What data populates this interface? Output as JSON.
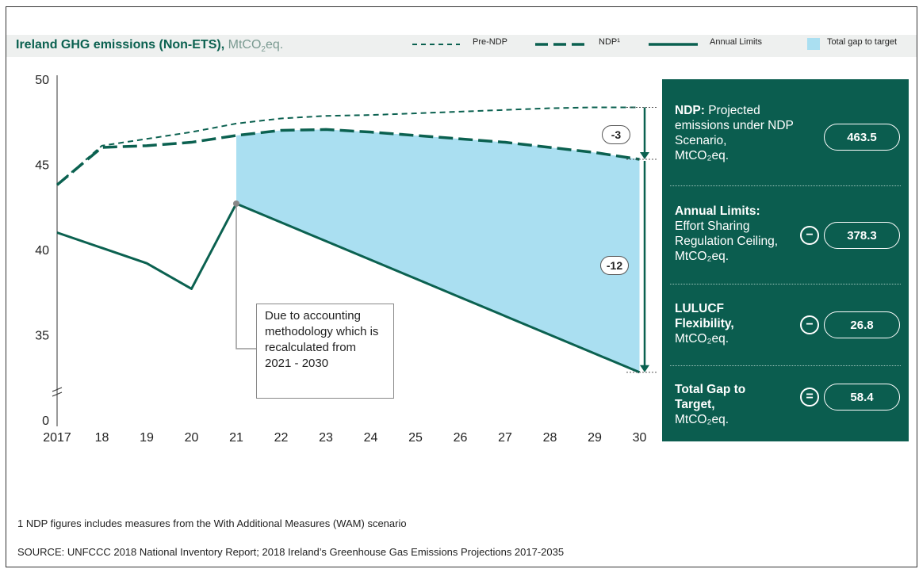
{
  "title": {
    "main": "Ireland GHG emissions (Non-ETS),",
    "unit_prefix": "MtCO",
    "unit_sub": "2",
    "unit_suffix": "eq."
  },
  "legend": [
    {
      "label": "Pre-NDP",
      "style": "short-dash"
    },
    {
      "label": "NDP¹",
      "style": "long-dash"
    },
    {
      "label": "Annual Limits",
      "style": "solid"
    },
    {
      "label": "Total gap to target",
      "style": "swatch"
    }
  ],
  "colors": {
    "line": "#0b6150",
    "gap_fill": "#aadff1",
    "panel": "#0b5d4f",
    "band": "#eef0ef"
  },
  "chart_data": {
    "type": "line",
    "x": [
      "2017",
      "18",
      "19",
      "20",
      "21",
      "22",
      "23",
      "24",
      "25",
      "26",
      "27",
      "28",
      "29",
      "30"
    ],
    "y_ticks": [
      "0",
      "35",
      "40",
      "45",
      "50"
    ],
    "y_axis_break": true,
    "ylim": [
      32.5,
      50
    ],
    "series": [
      {
        "name": "Pre-NDP",
        "style": "short-dash",
        "values": [
          43.8,
          46.1,
          46.5,
          46.9,
          47.4,
          47.7,
          47.85,
          47.9,
          48.0,
          48.1,
          48.2,
          48.3,
          48.35,
          48.35
        ]
      },
      {
        "name": "NDP¹",
        "style": "long-dash",
        "values": [
          43.8,
          46.0,
          46.1,
          46.3,
          46.7,
          47.0,
          47.05,
          46.9,
          46.7,
          46.5,
          46.3,
          46.0,
          45.7,
          45.3
        ]
      },
      {
        "name": "Annual Limits",
        "style": "solid",
        "values": [
          41.0,
          40.1,
          39.2,
          37.7,
          42.7,
          41.6,
          40.5,
          39.4,
          38.3,
          37.2,
          36.1,
          35.0,
          33.9,
          32.8
        ]
      }
    ],
    "gap_fill": {
      "label": "Total gap to target",
      "from": "21",
      "to": "30"
    },
    "annotations": {
      "gap_ndp_vs_prendp": "-3",
      "gap_total": "-12",
      "note": "Due to accounting methodology which is recalculated from 2021 - 2030"
    }
  },
  "panel": {
    "sections": [
      {
        "bold": "NDP:",
        "text": "Projected emissions under NDP Scenario,",
        "unit": "MtCO₂eq.",
        "value": "463.5",
        "op": ""
      },
      {
        "bold": "Annual Limits:",
        "text": "Effort Sharing Regulation Ceiling,",
        "unit": "MtCO₂eq.",
        "value": "378.3",
        "op": "−"
      },
      {
        "bold": "LULUCF Flexibility,",
        "text": "",
        "unit": "MtCO₂eq.",
        "value": "26.8",
        "op": "−"
      },
      {
        "bold": "Total Gap to Target,",
        "text": "",
        "unit": "MtCO₂eq.",
        "value": "58.4",
        "op": "="
      }
    ]
  },
  "footnotes": {
    "note1": "1 NDP figures includes measures from the With Additional Measures (WAM) scenario",
    "source": "SOURCE: UNFCCC 2018 National Inventory Report; 2018 Ireland’s Greenhouse Gas Emissions Projections 2017-2035"
  }
}
